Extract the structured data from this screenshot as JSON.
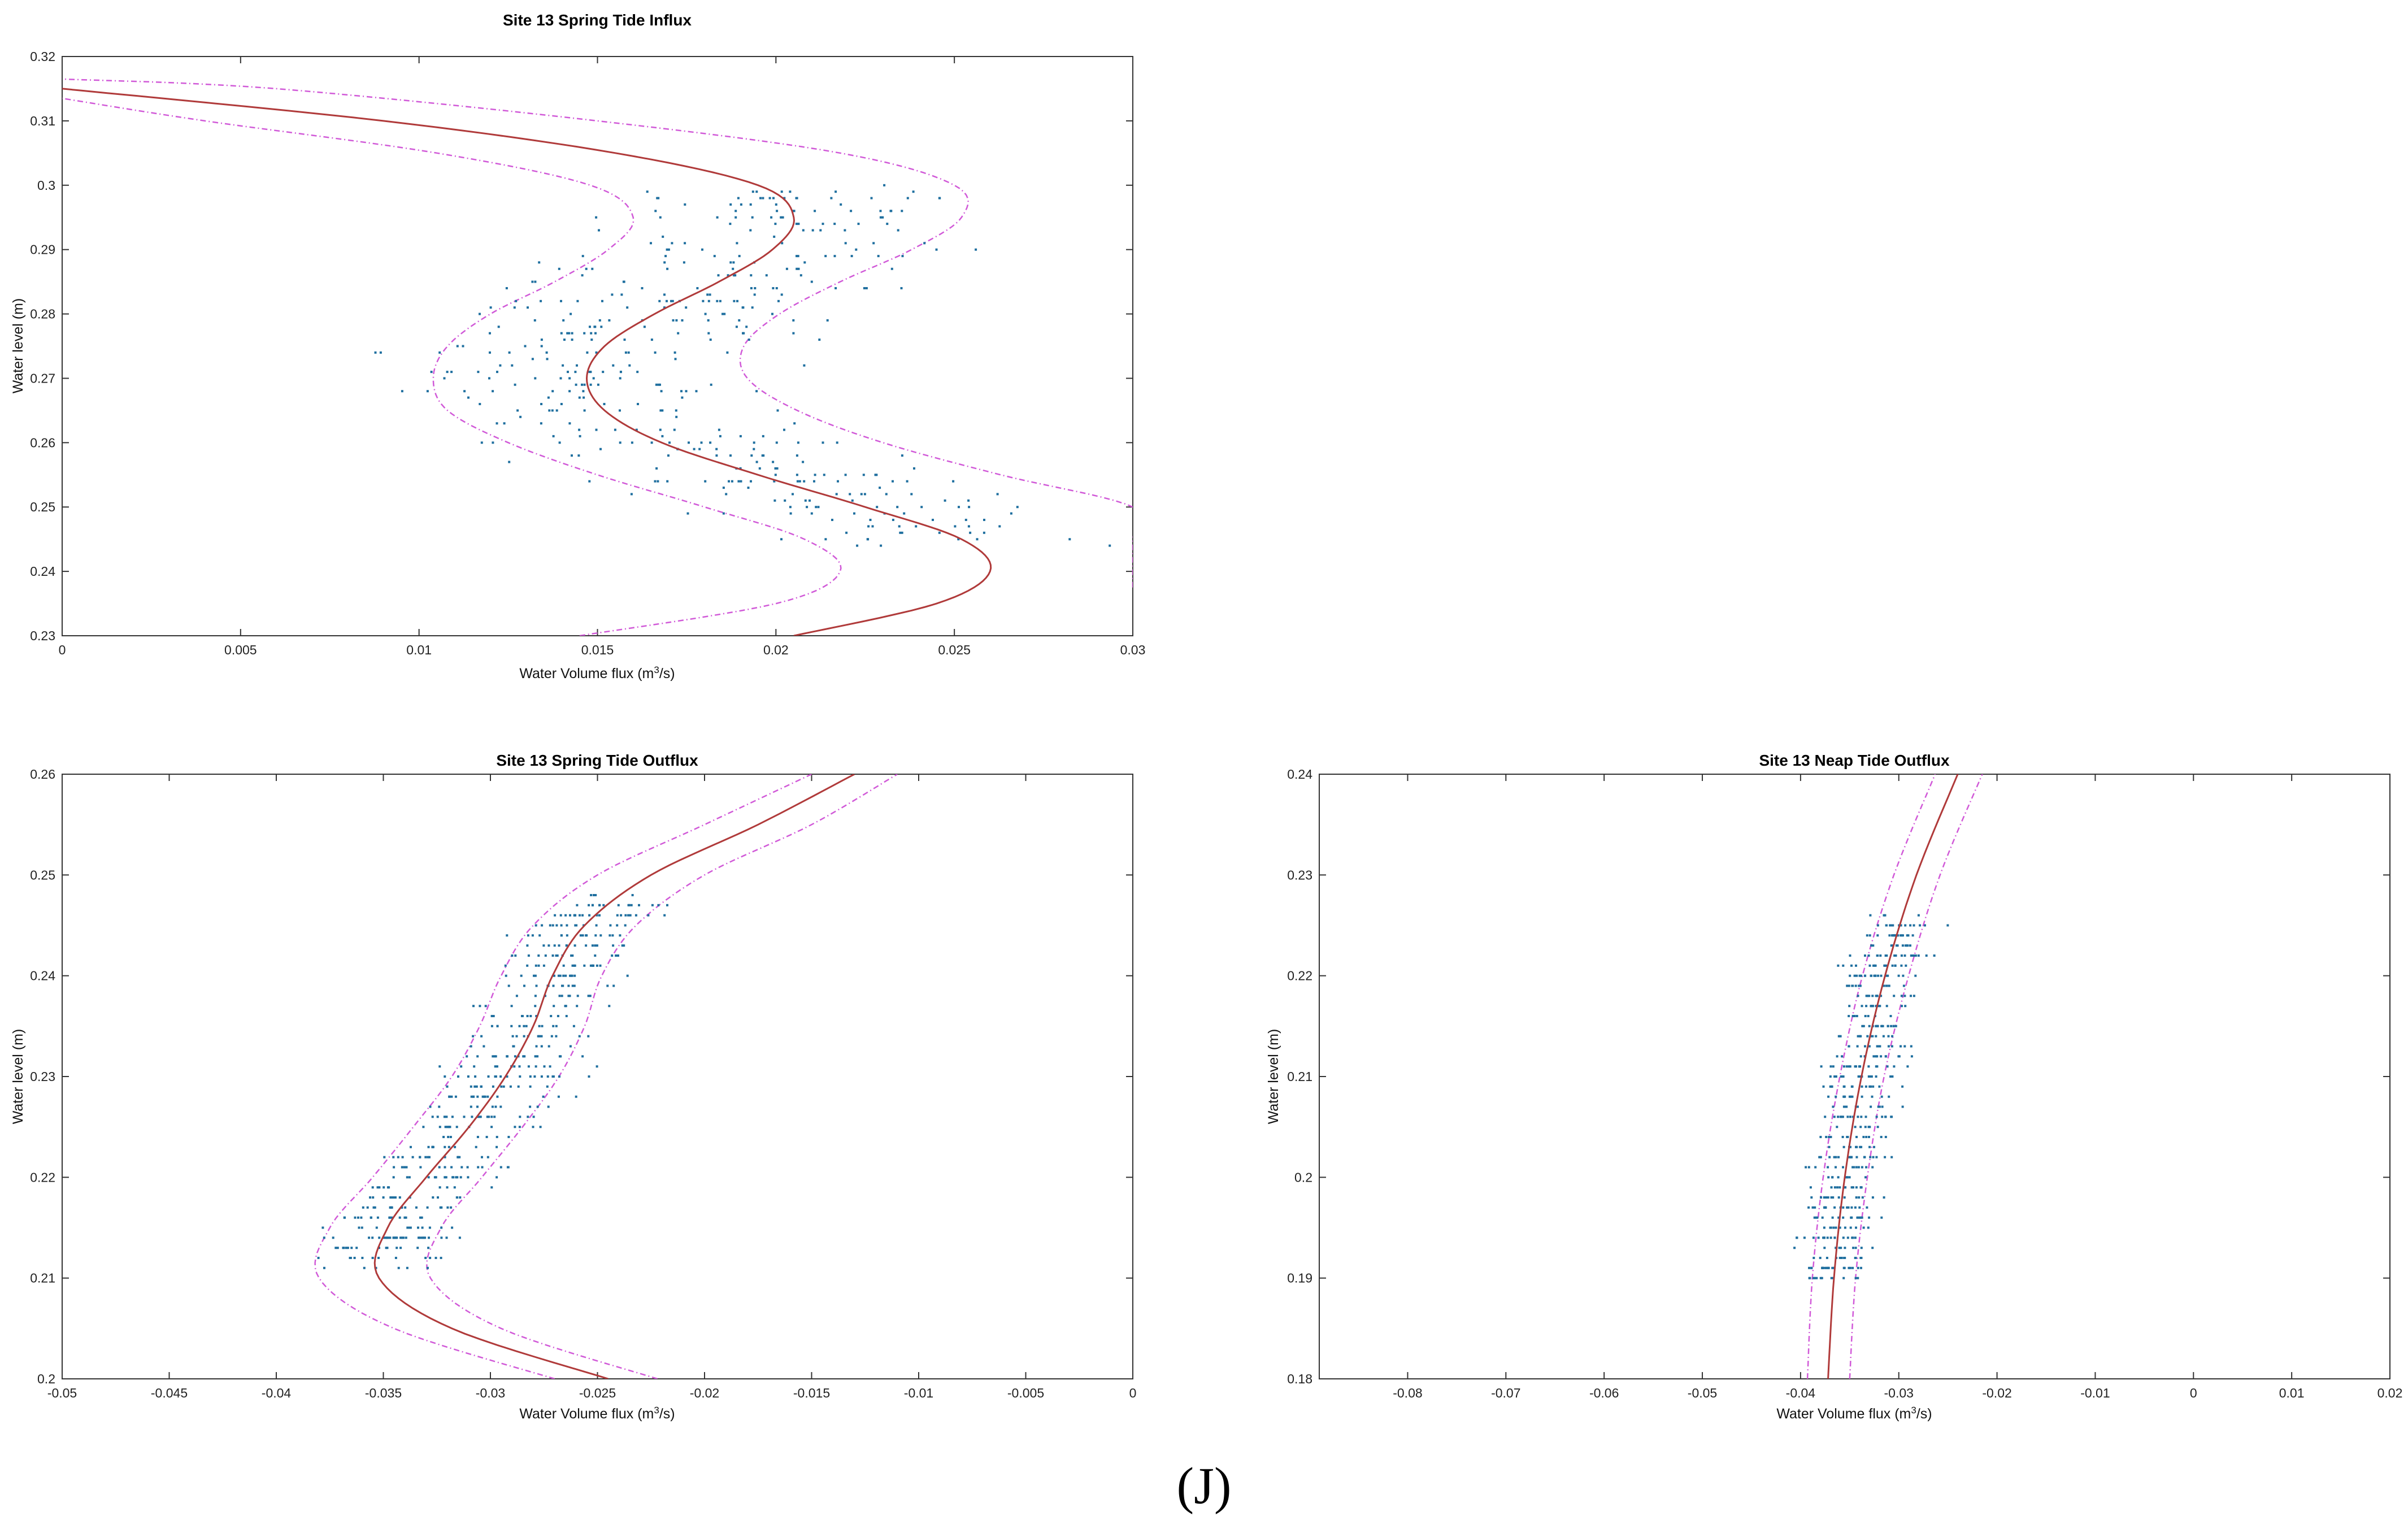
{
  "figure_label": "(J)",
  "colors": {
    "fit": "#b03a3a",
    "bounds": "#d15ad8",
    "points": "#1f6f9f",
    "axes": "#333333"
  },
  "chart_data": [
    {
      "type": "scatter",
      "title": "Site 13 Spring Tide Influx",
      "xlabel": "Water Volume flux (m",
      "xlabel_sup": "3",
      "xlabel_tail": "/s)",
      "ylabel": "Water level (m)",
      "xlim": [
        0,
        0.03
      ],
      "ylim": [
        0.23,
        0.32
      ],
      "xticks": [
        0,
        0.005,
        0.01,
        0.015,
        0.02,
        0.025,
        0.03
      ],
      "xtick_labels": [
        "0",
        "0.005",
        "0.01",
        "0.015",
        "0.02",
        "0.025",
        "0.03"
      ],
      "yticks": [
        0.23,
        0.24,
        0.25,
        0.26,
        0.27,
        0.28,
        0.29,
        0.3,
        0.31,
        0.32
      ],
      "ytick_labels": [
        "0.23",
        "0.24",
        "0.25",
        "0.26",
        "0.27",
        "0.28",
        "0.29",
        "0.3",
        "0.31",
        "0.32"
      ],
      "fit_curve": {
        "y": [
          0.23,
          0.235,
          0.24,
          0.245,
          0.25,
          0.255,
          0.26,
          0.265,
          0.27,
          0.275,
          0.28,
          0.285,
          0.29,
          0.295,
          0.3,
          0.305,
          0.31,
          0.315
        ],
        "x": [
          0.0205,
          0.0245,
          0.026,
          0.0252,
          0.0225,
          0.0195,
          0.0168,
          0.0152,
          0.0147,
          0.0152,
          0.0166,
          0.0184,
          0.0199,
          0.0205,
          0.0195,
          0.0155,
          0.009,
          0.0
        ]
      },
      "upper_bound": {
        "y": [
          0.2375,
          0.24,
          0.245,
          0.25,
          0.255,
          0.26,
          0.265,
          0.27,
          0.275,
          0.28,
          0.285,
          0.29,
          0.295,
          0.3,
          0.305,
          0.31,
          0.315,
          0.3165
        ],
        "x": [
          0.03,
          0.03,
          0.03,
          0.03,
          0.0263,
          0.023,
          0.0206,
          0.0192,
          0.0191,
          0.0201,
          0.0218,
          0.0238,
          0.0252,
          0.025,
          0.0218,
          0.015,
          0.006,
          0.0
        ]
      },
      "lower_bound": {
        "y": [
          0.23,
          0.235,
          0.24,
          0.245,
          0.25,
          0.255,
          0.26,
          0.265,
          0.27,
          0.275,
          0.28,
          0.285,
          0.29,
          0.295,
          0.3,
          0.305,
          0.31,
          0.3135
        ],
        "x": [
          0.0145,
          0.02,
          0.0218,
          0.0208,
          0.018,
          0.015,
          0.0125,
          0.0108,
          0.0104,
          0.0108,
          0.012,
          0.0138,
          0.0153,
          0.016,
          0.0148,
          0.0105,
          0.004,
          0.0
        ]
      },
      "scatter_band": {
        "center": "fit_curve",
        "y_range": [
          0.244,
          0.3
        ],
        "spread": 0.0035,
        "n": 460
      }
    },
    {
      "type": "scatter",
      "title": "Site 13 Spring Tide Outflux",
      "xlabel": "Water Volume flux (m",
      "xlabel_sup": "3",
      "xlabel_tail": "/s)",
      "ylabel": "Water level (m)",
      "xlim": [
        -0.05,
        0
      ],
      "ylim": [
        0.2,
        0.26
      ],
      "xticks": [
        -0.05,
        -0.045,
        -0.04,
        -0.035,
        -0.03,
        -0.025,
        -0.02,
        -0.015,
        -0.01,
        -0.005,
        0
      ],
      "xtick_labels": [
        "-0.05",
        "-0.045",
        "-0.04",
        "-0.035",
        "-0.03",
        "-0.025",
        "-0.02",
        "-0.015",
        "-0.01",
        "-0.005",
        "0"
      ],
      "yticks": [
        0.2,
        0.21,
        0.22,
        0.23,
        0.24,
        0.25,
        0.26
      ],
      "ytick_labels": [
        "0.2",
        "0.21",
        "0.22",
        "0.23",
        "0.24",
        "0.25",
        "0.26"
      ],
      "fit_curve": {
        "y": [
          0.2,
          0.205,
          0.21,
          0.215,
          0.22,
          0.225,
          0.23,
          0.235,
          0.24,
          0.245,
          0.25,
          0.255,
          0.26
        ],
        "x": [
          -0.0245,
          -0.0318,
          -0.0352,
          -0.0348,
          -0.033,
          -0.031,
          -0.0293,
          -0.028,
          -0.0271,
          -0.0256,
          -0.0225,
          -0.0175,
          -0.013
        ]
      },
      "upper_bound": {
        "y": [
          0.2,
          0.205,
          0.21,
          0.215,
          0.22,
          0.225,
          0.23,
          0.235,
          0.24,
          0.245,
          0.25,
          0.255,
          0.26
        ],
        "x": [
          -0.0222,
          -0.0295,
          -0.0328,
          -0.0323,
          -0.0304,
          -0.0285,
          -0.0268,
          -0.0256,
          -0.0248,
          -0.0232,
          -0.02,
          -0.015,
          -0.011
        ]
      },
      "lower_bound": {
        "y": [
          0.2,
          0.205,
          0.21,
          0.215,
          0.22,
          0.225,
          0.23,
          0.235,
          0.24,
          0.245,
          0.25,
          0.255,
          0.26
        ],
        "x": [
          -0.027,
          -0.0345,
          -0.038,
          -0.0375,
          -0.0355,
          -0.0336,
          -0.0318,
          -0.0305,
          -0.0295,
          -0.028,
          -0.025,
          -0.02,
          -0.015
        ]
      },
      "scatter_band": {
        "center": "fit_curve",
        "y_range": [
          0.211,
          0.248
        ],
        "spread": 0.0022,
        "n": 520
      }
    },
    {
      "type": "scatter",
      "title": "Site 13 Neap Tide Outflux",
      "xlabel": "Water Volume flux (m",
      "xlabel_sup": "3",
      "xlabel_tail": "/s)",
      "ylabel": "Water level (m)",
      "xlim": [
        -0.089,
        0.02
      ],
      "ylim": [
        0.18,
        0.24
      ],
      "xticks": [
        -0.08,
        -0.07,
        -0.06,
        -0.05,
        -0.04,
        -0.03,
        -0.02,
        -0.01,
        0,
        0.01,
        0.02
      ],
      "xtick_labels": [
        "-0.08",
        "-0.07",
        "-0.06",
        "-0.05",
        "-0.04",
        "-0.03",
        "-0.02",
        "-0.01",
        "0",
        "0.01",
        "0.02"
      ],
      "yticks": [
        0.18,
        0.19,
        0.2,
        0.21,
        0.22,
        0.23,
        0.24
      ],
      "ytick_labels": [
        "0.18",
        "0.19",
        "0.2",
        "0.21",
        "0.22",
        "0.23",
        "0.24"
      ],
      "fit_curve": {
        "y": [
          0.18,
          0.19,
          0.2,
          0.21,
          0.22,
          0.23,
          0.24
        ],
        "x": [
          -0.0372,
          -0.0366,
          -0.0355,
          -0.0338,
          -0.0314,
          -0.0282,
          -0.024
        ]
      },
      "upper_bound": {
        "y": [
          0.18,
          0.19,
          0.2,
          0.21,
          0.22,
          0.23,
          0.24
        ],
        "x": [
          -0.035,
          -0.0344,
          -0.0332,
          -0.0315,
          -0.029,
          -0.0258,
          -0.0215
        ]
      },
      "lower_bound": {
        "y": [
          0.18,
          0.19,
          0.2,
          0.21,
          0.22,
          0.23,
          0.24
        ],
        "x": [
          -0.0393,
          -0.0388,
          -0.0377,
          -0.036,
          -0.0337,
          -0.0305,
          -0.0263
        ]
      },
      "scatter_band": {
        "center": "fit_curve",
        "y_range": [
          0.19,
          0.226
        ],
        "spread": 0.0028,
        "n": 520
      }
    }
  ]
}
